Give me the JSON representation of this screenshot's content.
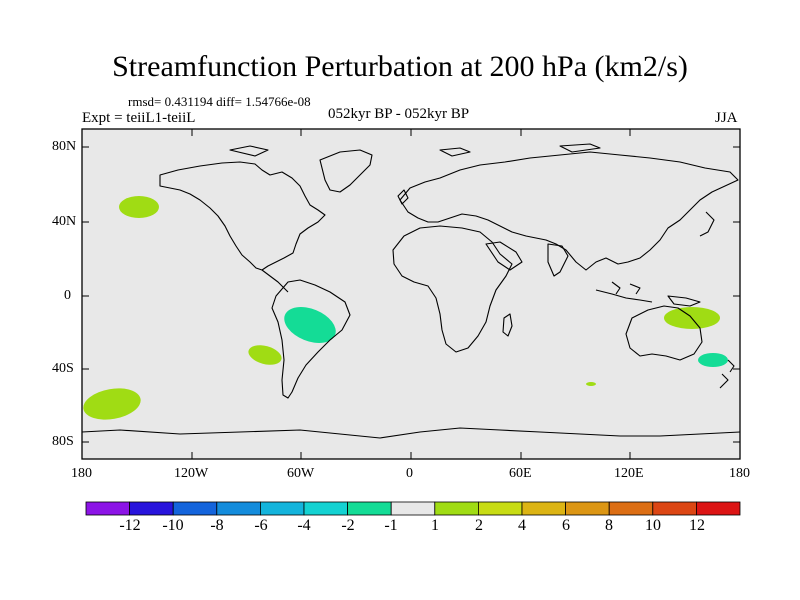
{
  "header": {
    "title": "Streamfunction Perturbation at 200 hPa (km2/s)",
    "stats": "rmsd= 0.431194 diff= 1.54766e-08",
    "experiment": "Expt = teiiL1-teiiL",
    "period": "052kyr BP - 052kyr BP",
    "season": "JJA"
  },
  "map": {
    "background": "#e8e8e8",
    "lat_labels": [
      "80N",
      "40N",
      "0",
      "40S",
      "80S"
    ],
    "lon_labels": [
      "180",
      "120W",
      "60W",
      "0",
      "60E",
      "120E",
      "180"
    ],
    "anomalies": [
      {
        "name": "north-pacific-positive",
        "color": "#a0dc14",
        "lon": -151,
        "lat": 48
      },
      {
        "name": "south-pacific-positive",
        "color": "#a0dc14",
        "lon": -165,
        "lat": -59
      },
      {
        "name": "southeast-pacific-positive",
        "color": "#a0dc14",
        "lon": -80,
        "lat": -32
      },
      {
        "name": "brazil-negative",
        "color": "#14dc96",
        "lon": -52,
        "lat": -16
      },
      {
        "name": "new-guinea-positive",
        "color": "#a0dc14",
        "lon": 152,
        "lat": -12
      },
      {
        "name": "tasman-negative",
        "color": "#14dc96",
        "lon": 164,
        "lat": -35
      },
      {
        "name": "indian-ocean-positive",
        "color": "#a0dc14",
        "lon": 98,
        "lat": -48
      }
    ]
  },
  "colorbar": {
    "colors": [
      "#8c14e6",
      "#2814dc",
      "#1464dc",
      "#148cdc",
      "#14b4dc",
      "#14d2d2",
      "#14dc96",
      "#e8e8e8",
      "#a0dc14",
      "#c8dc14",
      "#dcb414",
      "#dc9614",
      "#dc6e14",
      "#dc4614",
      "#dc1414"
    ],
    "labels": [
      "-12",
      "-10",
      "-8",
      "-6",
      "-4",
      "-2",
      "-1",
      "1",
      "2",
      "4",
      "6",
      "8",
      "10",
      "12"
    ]
  }
}
